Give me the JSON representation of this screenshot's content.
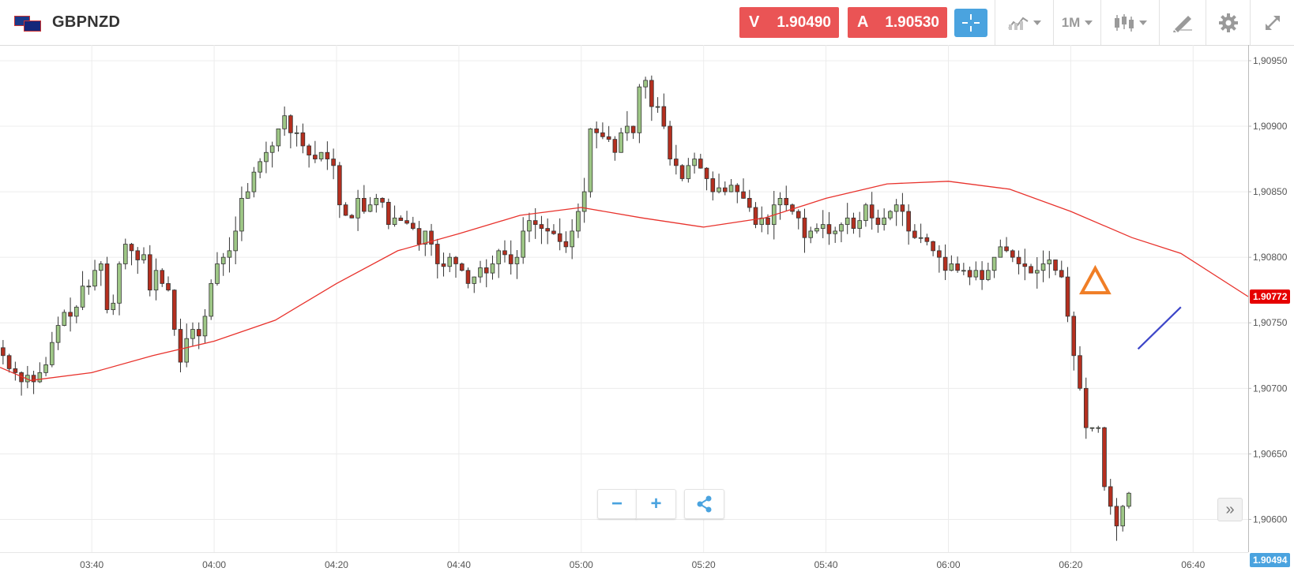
{
  "header": {
    "symbol": "GBPNZD",
    "sell_label": "V",
    "sell_price": "1.90490",
    "buy_label": "A",
    "buy_price": "1.90530",
    "timeframe": "1M"
  },
  "colors": {
    "bull": "#9ec786",
    "bear": "#b52f1f",
    "ma": "#e8322c",
    "sell": "#ea5455",
    "accent": "#4aa3df",
    "marker": "#f07e26",
    "trendline": "#3d46c8"
  },
  "icons": [
    "flag-icon",
    "crosshair-icon",
    "chart-type-icon",
    "candlestick-icon",
    "draw-tool-icon",
    "gear-icon",
    "expand-icon",
    "minus-icon",
    "plus-icon",
    "share-icon",
    "double-chevron-right-icon"
  ],
  "price_tags": {
    "ma_value": "1.90772",
    "last_price": "1.90494"
  },
  "chart_data": {
    "type": "candlestick",
    "y_ticks": [
      "1,90600",
      "1,90650",
      "1,90700",
      "1,90750",
      "1,90800",
      "1,90850",
      "1,90900",
      "1,90950"
    ],
    "y_tick_values": [
      1.906,
      1.9065,
      1.907,
      1.9075,
      1.908,
      1.9085,
      1.909,
      1.9095
    ],
    "ylim": [
      1.90575,
      1.90962
    ],
    "x_ticks": [
      "03:40",
      "04:00",
      "04:20",
      "04:40",
      "05:00",
      "05:20",
      "05:40",
      "06:00",
      "06:20",
      "06:40"
    ],
    "x_tick_minutes": [
      220,
      240,
      260,
      280,
      300,
      320,
      340,
      360,
      380,
      400
    ],
    "xlim_minutes": [
      205,
      409
    ],
    "candle_interval_minutes": 1,
    "closes": [
      1.90725,
      1.90715,
      1.90712,
      1.90705,
      1.9071,
      1.90705,
      1.90712,
      1.90718,
      1.90735,
      1.90748,
      1.90758,
      1.90755,
      1.90762,
      1.90778,
      1.90778,
      1.9079,
      1.90795,
      1.9076,
      1.90765,
      1.90795,
      1.9081,
      1.90805,
      1.90798,
      1.90802,
      1.90775,
      1.9079,
      1.9078,
      1.90775,
      1.90745,
      1.9072,
      1.90738,
      1.90745,
      1.9074,
      1.90755,
      1.9078,
      1.90795,
      1.908,
      1.90805,
      1.9082,
      1.90845,
      1.9085,
      1.90865,
      1.90873,
      1.9088,
      1.90885,
      1.90898,
      1.90908,
      1.90895,
      1.90895,
      1.90885,
      1.90878,
      1.90875,
      1.9088,
      1.90875,
      1.9087,
      1.9084,
      1.90832,
      1.9083,
      1.90845,
      1.90835,
      1.9084,
      1.90845,
      1.90842,
      1.90825,
      1.9083,
      1.90828,
      1.90826,
      1.90822,
      1.9081,
      1.9082,
      1.9081,
      1.90795,
      1.90793,
      1.908,
      1.90795,
      1.9079,
      1.9078,
      1.90785,
      1.90792,
      1.90788,
      1.90795,
      1.90805,
      1.90802,
      1.90795,
      1.908,
      1.9082,
      1.90828,
      1.90825,
      1.90822,
      1.9082,
      1.90818,
      1.90812,
      1.90808,
      1.9082,
      1.90835,
      1.9085,
      1.90898,
      1.90895,
      1.90892,
      1.9089,
      1.9088,
      1.90895,
      1.909,
      1.90895,
      1.9093,
      1.90935,
      1.90915,
      1.90915,
      1.909,
      1.90875,
      1.9087,
      1.9086,
      1.9087,
      1.90875,
      1.90868,
      1.9086,
      1.9085,
      1.90853,
      1.9085,
      1.90855,
      1.9085,
      1.90845,
      1.90838,
      1.90825,
      1.9083,
      1.90825,
      1.9084,
      1.90845,
      1.9084,
      1.90835,
      1.9083,
      1.90815,
      1.9082,
      1.90822,
      1.90825,
      1.90818,
      1.9082,
      1.90825,
      1.9083,
      1.90822,
      1.90828,
      1.9084,
      1.9083,
      1.90825,
      1.9083,
      1.90835,
      1.9084,
      1.90835,
      1.9082,
      1.90815,
      1.90815,
      1.90812,
      1.90805,
      1.908,
      1.9079,
      1.90795,
      1.9079,
      1.9079,
      1.90785,
      1.9079,
      1.90783,
      1.9079,
      1.908,
      1.90808,
      1.90805,
      1.908,
      1.90795,
      1.90793,
      1.90788,
      1.9079,
      1.90795,
      1.90798,
      1.9079,
      1.90785,
      1.90755,
      1.90725,
      1.907,
      1.9067,
      1.9067,
      1.9067,
      1.90625,
      1.9061,
      1.90595,
      1.9061,
      1.9062
    ],
    "moving_average": {
      "type": "line",
      "points": [
        [
          205,
          1.90716
        ],
        [
          210,
          1.90706
        ],
        [
          220,
          1.90712
        ],
        [
          230,
          1.90725
        ],
        [
          240,
          1.90736
        ],
        [
          250,
          1.90752
        ],
        [
          260,
          1.9078
        ],
        [
          270,
          1.90805
        ],
        [
          280,
          1.90818
        ],
        [
          290,
          1.90832
        ],
        [
          300,
          1.90838
        ],
        [
          310,
          1.9083
        ],
        [
          320,
          1.90823
        ],
        [
          330,
          1.9083
        ],
        [
          340,
          1.90845
        ],
        [
          350,
          1.90856
        ],
        [
          360,
          1.90858
        ],
        [
          370,
          1.90852
        ],
        [
          380,
          1.90835
        ],
        [
          390,
          1.90815
        ],
        [
          398,
          1.90803
        ],
        [
          409,
          1.9077
        ]
      ]
    },
    "annotations": [
      {
        "type": "triangle-up",
        "x_minutes": 384,
        "y": 1.90782
      },
      {
        "type": "trendline",
        "from": [
          391,
          1.9073
        ],
        "to": [
          398,
          1.90762
        ]
      }
    ]
  }
}
